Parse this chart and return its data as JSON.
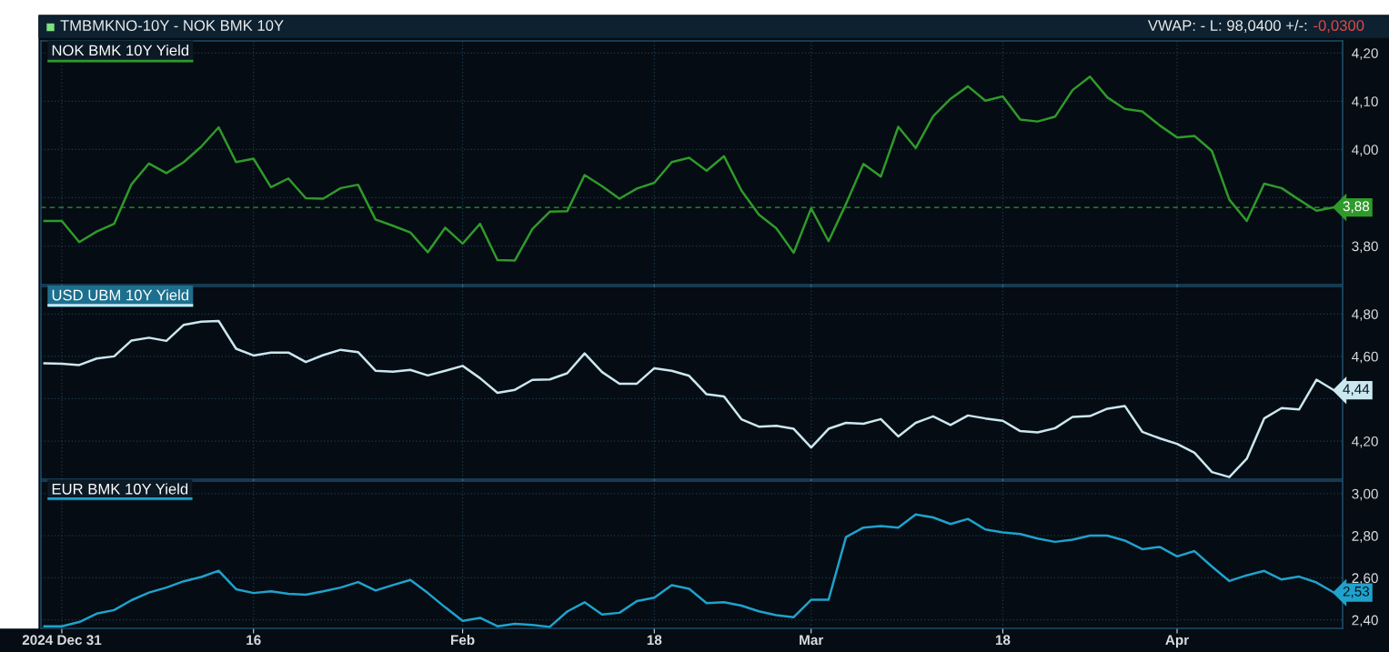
{
  "chart_data": [
    {
      "type": "line",
      "title": "TMBMKNO-10Y - NOK BMK 10Y",
      "annotations": [
        "VWAP: - L: 98,0400 +/-:",
        "-0,0300"
      ],
      "categories": [
        null,
        null,
        null,
        null,
        null,
        null,
        null,
        null,
        null,
        null,
        null,
        null,
        null,
        null,
        null,
        null,
        null,
        null,
        null,
        null,
        null,
        null,
        null,
        null,
        null,
        null,
        null,
        null,
        null,
        null,
        null,
        null,
        null,
        null,
        null,
        null,
        null,
        null,
        null,
        null,
        null,
        null,
        null,
        null,
        null,
        null,
        null,
        null,
        null,
        null,
        null,
        null,
        null,
        null,
        null,
        null,
        null,
        null,
        null,
        null,
        null,
        null,
        null,
        null,
        null,
        null,
        null,
        null,
        null,
        null,
        null,
        null,
        null,
        null,
        null
      ],
      "series": [
        {
          "name": "NOK BMK 10Y Yield",
          "color": "#2f9a2a",
          "values": [
            3.852,
            3.852,
            3.808,
            3.83,
            3.846,
            3.928,
            3.971,
            3.951,
            3.974,
            4.006,
            4.046,
            3.974,
            3.981,
            3.922,
            3.94,
            3.899,
            3.898,
            3.92,
            3.927,
            3.855,
            3.842,
            3.828,
            3.787,
            3.838,
            3.805,
            3.846,
            3.771,
            3.77,
            3.835,
            3.871,
            3.872,
            3.947,
            3.924,
            3.898,
            3.919,
            3.931,
            3.974,
            3.983,
            3.956,
            3.986,
            3.915,
            3.865,
            3.837,
            3.786,
            3.878,
            3.81,
            3.887,
            3.97,
            3.944,
            4.047,
            4.003,
            4.069,
            4.105,
            4.131,
            4.101,
            4.11,
            4.062,
            4.058,
            4.068,
            4.123,
            4.151,
            4.108,
            4.084,
            4.079,
            4.05,
            4.025,
            4.028,
            3.997,
            3.896,
            3.852,
            3.929,
            3.92,
            3.896,
            3.873,
            3.88
          ],
          "value_labels": [
            null,
            null,
            null,
            null,
            null,
            null,
            null,
            null,
            null,
            null,
            null,
            null,
            null,
            null,
            null,
            null,
            null,
            null,
            null,
            null,
            null,
            null,
            null,
            null,
            null,
            null,
            null,
            null,
            null,
            null,
            null,
            null,
            null,
            null,
            null,
            null,
            null,
            null,
            null,
            null,
            null,
            null,
            null,
            null,
            null,
            null,
            null,
            null,
            null,
            null,
            null,
            null,
            null,
            null,
            null,
            null,
            null,
            null,
            null,
            null,
            null,
            null,
            null,
            null,
            null,
            null,
            null,
            null,
            null,
            null,
            null,
            null,
            null,
            null,
            "3,88"
          ]
        }
      ],
      "ylim": [
        3.72,
        4.225
      ],
      "yticks": [
        {
          "value": 3.8,
          "label": "3,80"
        },
        {
          "value": 3.9,
          "label": null
        },
        {
          "value": 4.0,
          "label": "4,00"
        },
        {
          "value": 4.1,
          "label": "4,10"
        },
        {
          "value": 4.2,
          "label": "4,20"
        }
      ],
      "ref_lines": [
        {
          "axis": "y",
          "value": 3.88,
          "color": "#2f9a2a",
          "line_style": "dashed"
        }
      ],
      "tick_labels": "y",
      "grid": true,
      "legend": "top left",
      "line_style": "solid",
      "marker": "none"
    },
    {
      "type": "line",
      "categories": [
        null,
        null,
        null,
        null,
        null,
        null,
        null,
        null,
        null,
        null,
        null,
        null,
        null,
        null,
        null,
        null,
        null,
        null,
        null,
        null,
        null,
        null,
        null,
        null,
        null,
        null,
        null,
        null,
        null,
        null,
        null,
        null,
        null,
        null,
        null,
        null,
        null,
        null,
        null,
        null,
        null,
        null,
        null,
        null,
        null,
        null,
        null,
        null,
        null,
        null,
        null,
        null,
        null,
        null,
        null,
        null,
        null,
        null,
        null,
        null,
        null,
        null,
        null,
        null,
        null,
        null,
        null,
        null,
        null,
        null,
        null,
        null,
        null,
        null,
        null
      ],
      "series": [
        {
          "name": "USD UBM 10Y Yield",
          "color": "#cbe7f0",
          "values": [
            4.567,
            4.565,
            4.559,
            4.59,
            4.6,
            4.675,
            4.688,
            4.673,
            4.749,
            4.764,
            4.767,
            4.636,
            4.604,
            4.618,
            4.618,
            4.573,
            4.606,
            4.631,
            4.62,
            4.532,
            4.528,
            4.536,
            4.51,
            4.532,
            4.555,
            4.497,
            4.428,
            4.442,
            4.489,
            4.491,
            4.52,
            4.614,
            4.526,
            4.471,
            4.471,
            4.544,
            4.532,
            4.508,
            4.421,
            4.411,
            4.303,
            4.268,
            4.272,
            4.258,
            4.17,
            4.258,
            4.286,
            4.282,
            4.304,
            4.222,
            4.286,
            4.317,
            4.276,
            4.321,
            4.307,
            4.296,
            4.247,
            4.241,
            4.261,
            4.314,
            4.318,
            4.353,
            4.366,
            4.244,
            4.213,
            4.187,
            4.145,
            4.054,
            4.03,
            4.117,
            4.307,
            4.356,
            4.349,
            4.49,
            4.44
          ],
          "value_labels": [
            null,
            null,
            null,
            null,
            null,
            null,
            null,
            null,
            null,
            null,
            null,
            null,
            null,
            null,
            null,
            null,
            null,
            null,
            null,
            null,
            null,
            null,
            null,
            null,
            null,
            null,
            null,
            null,
            null,
            null,
            null,
            null,
            null,
            null,
            null,
            null,
            null,
            null,
            null,
            null,
            null,
            null,
            null,
            null,
            null,
            null,
            null,
            null,
            null,
            null,
            null,
            null,
            null,
            null,
            null,
            null,
            null,
            null,
            null,
            null,
            null,
            null,
            null,
            null,
            null,
            null,
            null,
            null,
            null,
            null,
            null,
            null,
            null,
            null,
            "4,44"
          ]
        }
      ],
      "ylim": [
        4.02,
        4.93
      ],
      "yticks": [
        {
          "value": 4.2,
          "label": "4,20"
        },
        {
          "value": 4.4,
          "label": null
        },
        {
          "value": 4.6,
          "label": "4,60"
        },
        {
          "value": 4.8,
          "label": "4,80"
        }
      ],
      "tick_labels": "y",
      "grid": true,
      "legend": "top left",
      "line_style": "solid",
      "marker": "none"
    },
    {
      "type": "line",
      "categories": [
        null,
        "2024 Dec 31",
        null,
        null,
        null,
        null,
        null,
        null,
        null,
        null,
        null,
        null,
        "16",
        null,
        null,
        null,
        null,
        null,
        null,
        null,
        null,
        null,
        null,
        null,
        "Feb",
        null,
        null,
        null,
        null,
        null,
        null,
        null,
        null,
        null,
        null,
        "18",
        null,
        null,
        null,
        null,
        null,
        null,
        null,
        null,
        "Mar",
        null,
        null,
        null,
        null,
        null,
        null,
        null,
        null,
        null,
        null,
        "18",
        null,
        null,
        null,
        null,
        null,
        null,
        null,
        null,
        null,
        "Apr",
        null,
        null,
        null,
        null,
        null,
        null,
        null,
        null,
        null
      ],
      "series": [
        {
          "name": "EUR BMK 10Y Yield",
          "color": "#1fa2cc",
          "values": [
            2.37,
            2.37,
            2.39,
            2.43,
            2.447,
            2.494,
            2.53,
            2.554,
            2.584,
            2.604,
            2.634,
            2.546,
            2.528,
            2.536,
            2.524,
            2.52,
            2.536,
            2.554,
            2.58,
            2.54,
            2.566,
            2.59,
            2.528,
            2.46,
            2.396,
            2.41,
            2.37,
            2.382,
            2.376,
            2.367,
            2.44,
            2.484,
            2.426,
            2.434,
            2.49,
            2.506,
            2.565,
            2.548,
            2.48,
            2.484,
            2.468,
            2.441,
            2.423,
            2.413,
            2.496,
            2.496,
            2.794,
            2.839,
            2.846,
            2.839,
            2.901,
            2.887,
            2.856,
            2.88,
            2.83,
            2.816,
            2.808,
            2.787,
            2.771,
            2.781,
            2.801,
            2.801,
            2.777,
            2.736,
            2.747,
            2.702,
            2.727,
            2.654,
            2.585,
            2.612,
            2.633,
            2.592,
            2.606,
            2.578,
            2.53
          ],
          "value_labels": [
            null,
            null,
            null,
            null,
            null,
            null,
            null,
            null,
            null,
            null,
            null,
            null,
            null,
            null,
            null,
            null,
            null,
            null,
            null,
            null,
            null,
            null,
            null,
            null,
            null,
            null,
            null,
            null,
            null,
            null,
            null,
            null,
            null,
            null,
            null,
            null,
            null,
            null,
            null,
            null,
            null,
            null,
            null,
            null,
            null,
            null,
            null,
            null,
            null,
            null,
            null,
            null,
            null,
            null,
            null,
            null,
            null,
            null,
            null,
            null,
            null,
            null,
            null,
            null,
            null,
            null,
            null,
            null,
            null,
            null,
            null,
            null,
            null,
            null,
            "2,53"
          ]
        }
      ],
      "ylim": [
        2.36,
        3.06
      ],
      "yticks": [
        {
          "value": 2.4,
          "label": "2,40"
        },
        {
          "value": 2.6,
          "label": "2,60"
        },
        {
          "value": 2.8,
          "label": "2,80"
        },
        {
          "value": 3.0,
          "label": "3,00"
        }
      ],
      "grid": true,
      "legend": "top left",
      "line_style": "solid",
      "marker": "none"
    }
  ]
}
